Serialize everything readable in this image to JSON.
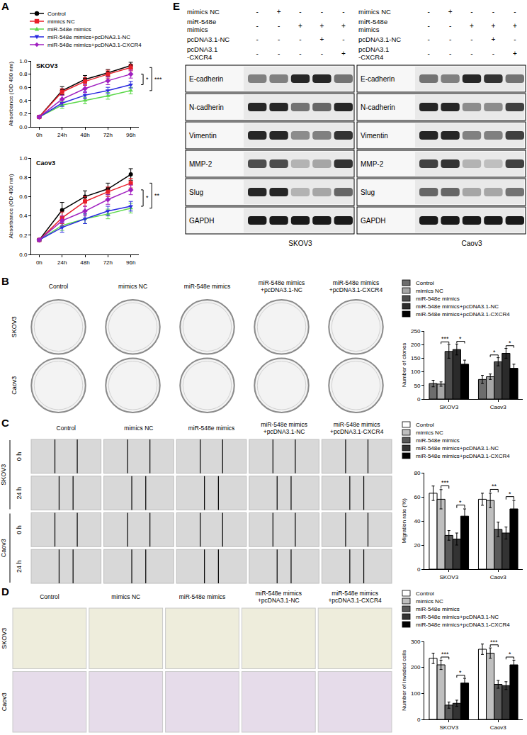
{
  "panel_labels": [
    "A",
    "B",
    "C",
    "D",
    "E"
  ],
  "chart_data": [
    {
      "type": "line",
      "title": "SKOV3",
      "categories": [
        "0h",
        "24h",
        "48h",
        "72h",
        "96h"
      ],
      "ylabel": "Absorbance (OD 490 nm)",
      "ylim": [
        0,
        1.0
      ],
      "yticks": [
        {
          "value": 0,
          "label": "0.0"
        },
        {
          "value": 0.2,
          "label": "0.2"
        },
        {
          "value": 0.4,
          "label": "0.4"
        },
        {
          "value": 0.6,
          "label": "0.6"
        },
        {
          "value": 0.8,
          "label": "0.8"
        },
        {
          "value": 1.0,
          "label": "1.0"
        }
      ],
      "legend": "top-left",
      "series": [
        {
          "name": "Control",
          "color": "#000000",
          "marker": "circle",
          "line_style": "solid",
          "values": [
            0.15,
            0.55,
            0.72,
            0.82,
            0.93
          ],
          "errors": [
            0.01,
            0.06,
            0.06,
            0.05,
            0.05
          ]
        },
        {
          "name": "mimics NC",
          "color": "#e8202a",
          "marker": "square",
          "line_style": "solid",
          "values": [
            0.15,
            0.53,
            0.69,
            0.8,
            0.9
          ],
          "errors": [
            0.01,
            0.05,
            0.06,
            0.06,
            0.05
          ]
        },
        {
          "name": "miR-548e mimics",
          "color": "#5cd84a",
          "marker": "triangle-up",
          "line_style": "solid",
          "values": [
            0.15,
            0.33,
            0.4,
            0.47,
            0.55
          ],
          "errors": [
            0.01,
            0.05,
            0.05,
            0.05,
            0.05
          ]
        },
        {
          "name": "miR-548e mimics+pcDNA3.1-NC",
          "color": "#2a2ae0",
          "marker": "triangle-down",
          "line_style": "solid",
          "values": [
            0.15,
            0.36,
            0.48,
            0.55,
            0.64
          ],
          "errors": [
            0.01,
            0.05,
            0.05,
            0.05,
            0.05
          ]
        },
        {
          "name": "miR-548e mimics+pcDNA3.1-CXCR4",
          "color": "#a020c0",
          "marker": "diamond",
          "line_style": "solid",
          "values": [
            0.15,
            0.42,
            0.58,
            0.7,
            0.8
          ],
          "errors": [
            0.01,
            0.06,
            0.06,
            0.06,
            0.06
          ]
        }
      ],
      "significance": [
        {
          "text": "*",
          "between": [
            "miR-548e mimics+pcDNA3.1-NC",
            "miR-548e mimics+pcDNA3.1-CXCR4"
          ]
        },
        {
          "text": "***",
          "between": [
            "mimics NC",
            "miR-548e mimics"
          ]
        }
      ]
    },
    {
      "type": "line",
      "title": "Caov3",
      "categories": [
        "0h",
        "24h",
        "48h",
        "72h",
        "96h"
      ],
      "ylabel": "Absorbance (OD 490 nm)",
      "ylim": [
        0,
        1.0
      ],
      "yticks": [
        {
          "value": 0,
          "label": "0.0"
        },
        {
          "value": 0.2,
          "label": "0.2"
        },
        {
          "value": 0.4,
          "label": "0.4"
        },
        {
          "value": 0.6,
          "label": "0.6"
        },
        {
          "value": 0.8,
          "label": "0.8"
        },
        {
          "value": 1.0,
          "label": "1.0"
        }
      ],
      "series": [
        {
          "name": "Control",
          "color": "#000000",
          "marker": "circle",
          "line_style": "solid",
          "values": [
            0.15,
            0.46,
            0.6,
            0.68,
            0.83
          ],
          "errors": [
            0.01,
            0.08,
            0.06,
            0.06,
            0.06
          ]
        },
        {
          "name": "mimics NC",
          "color": "#e8202a",
          "marker": "square",
          "line_style": "solid",
          "values": [
            0.15,
            0.38,
            0.55,
            0.65,
            0.74
          ],
          "errors": [
            0.01,
            0.06,
            0.05,
            0.05,
            0.05
          ]
        },
        {
          "name": "miR-548e mimics",
          "color": "#5cd84a",
          "marker": "triangle-up",
          "line_style": "solid",
          "values": [
            0.15,
            0.3,
            0.37,
            0.42,
            0.48
          ],
          "errors": [
            0.01,
            0.05,
            0.05,
            0.05,
            0.05
          ]
        },
        {
          "name": "miR-548e mimics+pcDNA3.1-NC",
          "color": "#2a2ae0",
          "marker": "triangle-down",
          "line_style": "solid",
          "values": [
            0.15,
            0.28,
            0.37,
            0.45,
            0.5
          ],
          "errors": [
            0.01,
            0.05,
            0.05,
            0.05,
            0.05
          ]
        },
        {
          "name": "miR-548e mimics+pcDNA3.1-CXCR4",
          "color": "#a020c0",
          "marker": "diamond",
          "line_style": "solid",
          "values": [
            0.15,
            0.35,
            0.45,
            0.57,
            0.67
          ],
          "errors": [
            0.01,
            0.05,
            0.05,
            0.05,
            0.05
          ]
        }
      ],
      "significance": [
        {
          "text": "*",
          "between": [
            "miR-548e mimics+pcDNA3.1-NC",
            "miR-548e mimics+pcDNA3.1-CXCR4"
          ]
        },
        {
          "text": "**",
          "between": [
            "mimics NC",
            "miR-548e mimics"
          ]
        }
      ]
    },
    {
      "type": "bar",
      "categories": [
        "SKOV3",
        "Caov3"
      ],
      "ylabel": "Number of clones",
      "ylim": [
        0,
        250
      ],
      "yticks": [
        0,
        50,
        100,
        150,
        200,
        250
      ],
      "legend": "top",
      "series": [
        {
          "name": "Control",
          "color": "#6d6d6d",
          "values": [
            57,
            72
          ],
          "errors": [
            12,
            15
          ]
        },
        {
          "name": "mimics NC",
          "color": "#a6a6a6",
          "values": [
            55,
            82
          ],
          "errors": [
            8,
            10
          ]
        },
        {
          "name": "miR-548e mimics",
          "color": "#4d4d4d",
          "values": [
            175,
            137
          ],
          "errors": [
            25,
            15
          ]
        },
        {
          "name": "miR-548e mimics+pcDNA3.1-NC",
          "color": "#2b2b2b",
          "values": [
            182,
            168
          ],
          "errors": [
            20,
            18
          ]
        },
        {
          "name": "miR-548e mimics+pcDNA3.1-CXCR4",
          "color": "#000000",
          "values": [
            128,
            113
          ],
          "errors": [
            15,
            15
          ]
        }
      ],
      "significance": [
        {
          "category": "SKOV3",
          "text": "***",
          "between": [
            "mimics NC",
            "miR-548e mimics"
          ]
        },
        {
          "category": "SKOV3",
          "text": "*",
          "between": [
            "miR-548e mimics+pcDNA3.1-NC",
            "miR-548e mimics+pcDNA3.1-CXCR4"
          ]
        },
        {
          "category": "Caov3",
          "text": "*",
          "between": [
            "mimics NC",
            "miR-548e mimics"
          ]
        },
        {
          "category": "Caov3",
          "text": "*",
          "between": [
            "miR-548e mimics+pcDNA3.1-NC",
            "miR-548e mimics+pcDNA3.1-CXCR4"
          ]
        }
      ]
    },
    {
      "type": "bar",
      "categories": [
        "SKOV3",
        "Caov3"
      ],
      "ylabel": "Migration rate (%)",
      "ylim": [
        0,
        80
      ],
      "yticks": [
        0,
        20,
        40,
        60,
        80
      ],
      "legend": "top",
      "series": [
        {
          "name": "Control",
          "color": "#ffffff",
          "values": [
            63,
            58
          ],
          "errors": [
            6,
            5
          ]
        },
        {
          "name": "mimics NC",
          "color": "#bfbfbf",
          "values": [
            58,
            57
          ],
          "errors": [
            8,
            6
          ]
        },
        {
          "name": "miR-548e mimics",
          "color": "#595959",
          "values": [
            28,
            33
          ],
          "errors": [
            4,
            6
          ]
        },
        {
          "name": "miR-548e mimics+pcDNA3.1-NC",
          "color": "#333333",
          "values": [
            25,
            30
          ],
          "errors": [
            5,
            5
          ]
        },
        {
          "name": "miR-548e mimics+pcDNA3.1-CXCR4",
          "color": "#000000",
          "values": [
            44,
            50
          ],
          "errors": [
            6,
            7
          ]
        }
      ],
      "significance": [
        {
          "category": "SKOV3",
          "text": "***",
          "between": [
            "mimics NC",
            "miR-548e mimics"
          ]
        },
        {
          "category": "SKOV3",
          "text": "*",
          "between": [
            "miR-548e mimics+pcDNA3.1-NC",
            "miR-548e mimics+pcDNA3.1-CXCR4"
          ]
        },
        {
          "category": "Caov3",
          "text": "**",
          "between": [
            "mimics NC",
            "miR-548e mimics"
          ]
        },
        {
          "category": "Caov3",
          "text": "*",
          "between": [
            "miR-548e mimics+pcDNA3.1-NC",
            "miR-548e mimics+pcDNA3.1-CXCR4"
          ]
        }
      ]
    },
    {
      "type": "bar",
      "categories": [
        "SKOV3",
        "Caov3"
      ],
      "ylabel": "Number of invaded cells",
      "ylim": [
        0,
        300
      ],
      "yticks": [
        0,
        100,
        200,
        300
      ],
      "legend": "top",
      "series": [
        {
          "name": "Control",
          "color": "#ffffff",
          "values": [
            235,
            270
          ],
          "errors": [
            20,
            20
          ]
        },
        {
          "name": "mimics NC",
          "color": "#bfbfbf",
          "values": [
            210,
            255
          ],
          "errors": [
            18,
            20
          ]
        },
        {
          "name": "miR-548e mimics",
          "color": "#595959",
          "values": [
            55,
            135
          ],
          "errors": [
            12,
            15
          ]
        },
        {
          "name": "miR-548e mimics+pcDNA3.1-NC",
          "color": "#333333",
          "values": [
            62,
            130
          ],
          "errors": [
            12,
            15
          ]
        },
        {
          "name": "miR-548e mimics+pcDNA3.1-CXCR4",
          "color": "#000000",
          "values": [
            140,
            210
          ],
          "errors": [
            18,
            18
          ]
        }
      ],
      "significance": [
        {
          "category": "SKOV3",
          "text": "***",
          "between": [
            "mimics NC",
            "miR-548e mimics"
          ]
        },
        {
          "category": "SKOV3",
          "text": "*",
          "between": [
            "miR-548e mimics+pcDNA3.1-NC",
            "miR-548e mimics+pcDNA3.1-CXCR4"
          ]
        },
        {
          "category": "Caov3",
          "text": "***",
          "between": [
            "mimics NC",
            "miR-548e mimics"
          ]
        },
        {
          "category": "Caov3",
          "text": "*",
          "between": [
            "miR-548e mimics+pcDNA3.1-NC",
            "miR-548e mimics+pcDNA3.1-CXCR4"
          ]
        }
      ]
    }
  ],
  "images": {
    "B": {
      "columns": [
        "Control",
        "mimics NC",
        "miR-548e mimics",
        "miR-548e mimics\n+pcDNA3.1-NC",
        "miR-548e mimics\n+pcDNA3.1-CXCR4"
      ],
      "rows": [
        "SKOV3",
        "Caov3"
      ]
    },
    "C": {
      "columns": [
        "Control",
        "mimics NC",
        "miR-548e mimics",
        "miR-548e mimics\n+pcDNA3.1-NC",
        "miR-548e mimics\n+pcDNA3.1-CXCR4"
      ],
      "rows": [
        "SKOV3",
        "Caov3"
      ],
      "times": [
        "0 h",
        "24 h"
      ]
    },
    "D": {
      "columns": [
        "Control",
        "mimics NC",
        "miR-548e mimics",
        "miR-548e mimics\n+pcDNA3.1-NC",
        "miR-548e mimics\n+pcDNA3.1-CXCR4"
      ],
      "rows": [
        "SKOV3",
        "Caov3"
      ]
    }
  },
  "western_blot": {
    "lane_labels": [
      "mimics NC",
      "miR-548e\nmimics",
      "pcDNA3.1-NC",
      "pcDNA3.1\n-CXCR4"
    ],
    "lane_signs": [
      [
        "-",
        "+",
        "-",
        "-",
        "-"
      ],
      [
        "-",
        "-",
        "+",
        "+",
        "+"
      ],
      [
        "-",
        "-",
        "-",
        "+",
        "-"
      ],
      [
        "-",
        "-",
        "-",
        "-",
        "+"
      ]
    ],
    "proteins": [
      "E-cadherin",
      "N-cadherin",
      "Vimentin",
      "MMP-2",
      "Slug",
      "GAPDH"
    ],
    "blots": [
      {
        "cell_line": "SKOV3",
        "band_intensity": [
          [
            0.5,
            0.5,
            0.85,
            0.85,
            0.55
          ],
          [
            0.85,
            0.85,
            0.55,
            0.6,
            0.85
          ],
          [
            0.85,
            0.85,
            0.45,
            0.5,
            0.8
          ],
          [
            0.7,
            0.7,
            0.3,
            0.35,
            0.8
          ],
          [
            0.85,
            0.85,
            0.3,
            0.35,
            0.6
          ],
          [
            0.9,
            0.9,
            0.9,
            0.9,
            0.9
          ]
        ]
      },
      {
        "cell_line": "Caov3",
        "band_intensity": [
          [
            0.55,
            0.5,
            0.85,
            0.8,
            0.55
          ],
          [
            0.85,
            0.85,
            0.45,
            0.45,
            0.75
          ],
          [
            0.85,
            0.85,
            0.5,
            0.5,
            0.75
          ],
          [
            0.75,
            0.8,
            0.3,
            0.25,
            0.75
          ],
          [
            0.6,
            0.6,
            0.35,
            0.35,
            0.55
          ],
          [
            0.9,
            0.9,
            0.9,
            0.9,
            0.9
          ]
        ]
      }
    ]
  }
}
